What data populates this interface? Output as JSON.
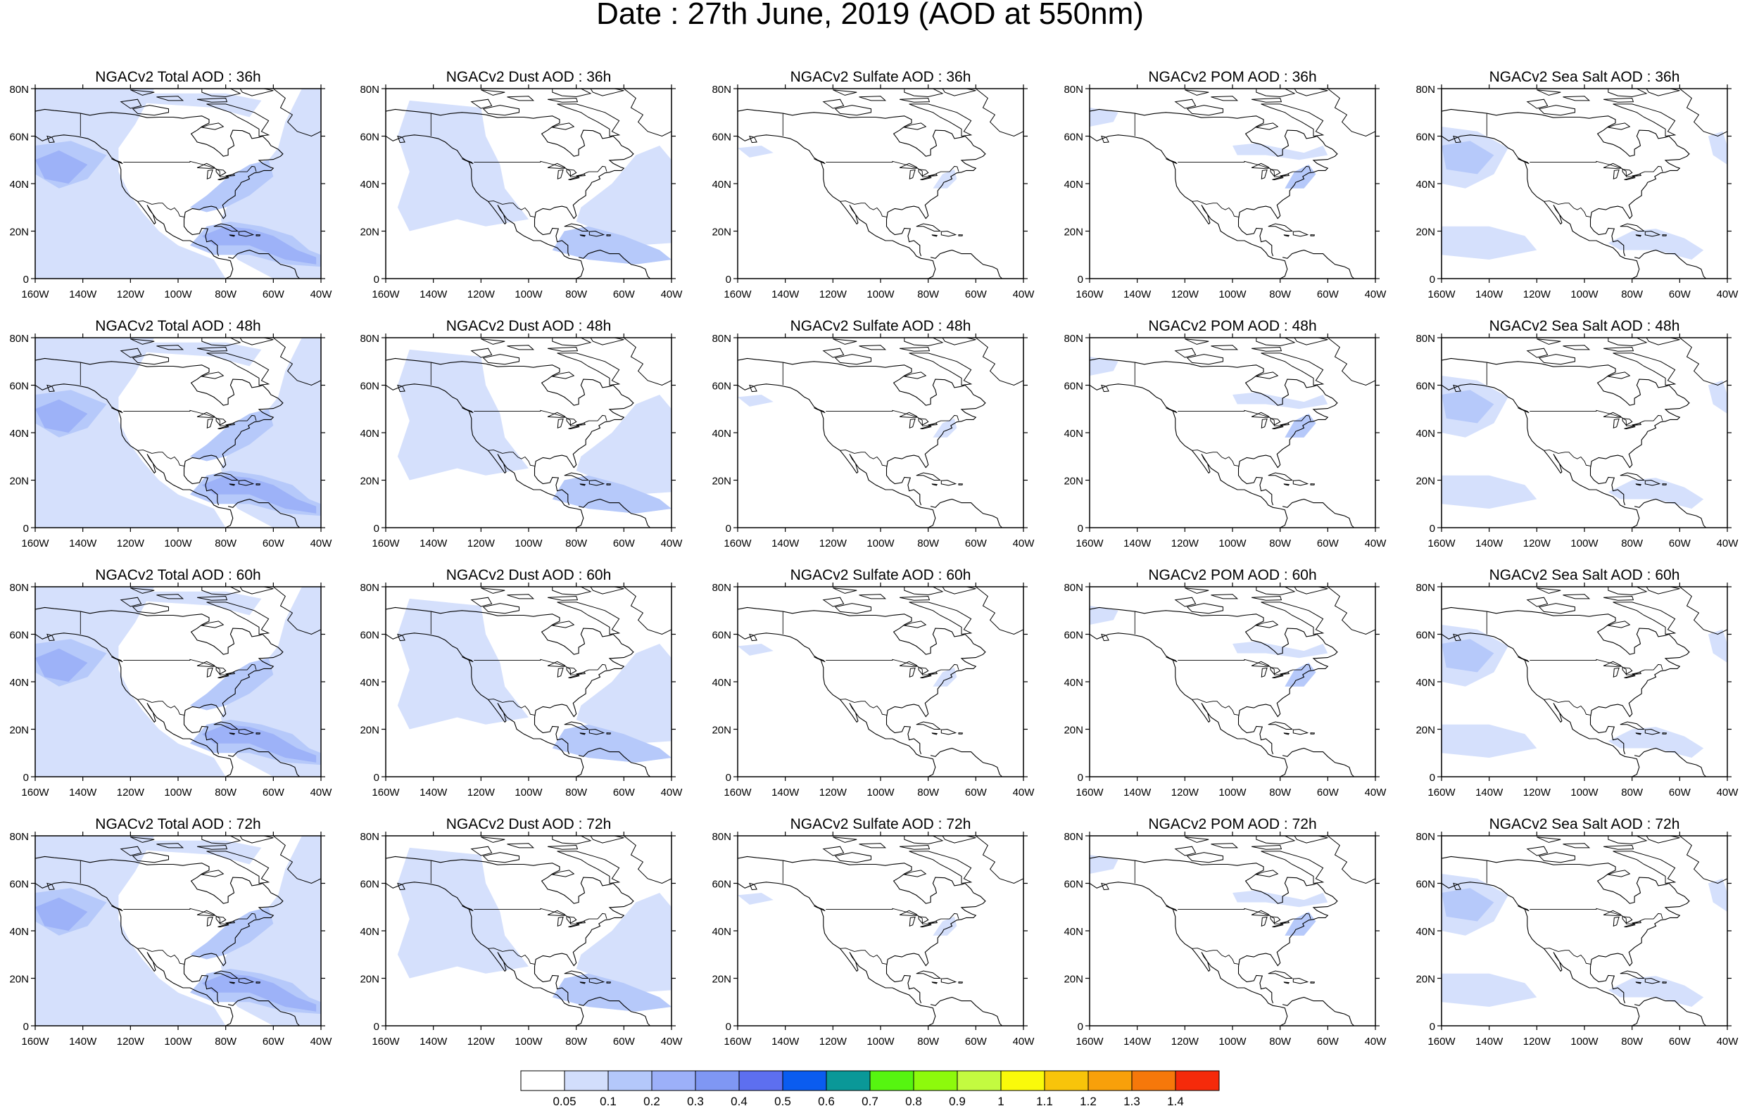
{
  "main_title": "Date : 27th June, 2019 (AOD at 550nm)",
  "lat_ticks": [
    "0",
    "20N",
    "40N",
    "60N",
    "80N"
  ],
  "lon_ticks": [
    "160W",
    "140W",
    "120W",
    "100W",
    "80W",
    "60W",
    "40W"
  ],
  "panels": [
    [
      "NGACv2 Total AOD : 36h",
      "NGACv2 Dust AOD : 36h",
      "NGACv2 Sulfate AOD : 36h",
      "NGACv2 POM AOD : 36h",
      "NGACv2 Sea Salt AOD : 36h"
    ],
    [
      "NGACv2 Total AOD : 48h",
      "NGACv2 Dust AOD : 48h",
      "NGACv2 Sulfate AOD : 48h",
      "NGACv2 POM AOD : 48h",
      "NGACv2 Sea Salt AOD : 48h"
    ],
    [
      "NGACv2 Total AOD : 60h",
      "NGACv2 Dust AOD : 60h",
      "NGACv2 Sulfate AOD : 60h",
      "NGACv2 POM AOD : 60h",
      "NGACv2 Sea Salt AOD : 60h"
    ],
    [
      "NGACv2 Total AOD : 72h",
      "NGACv2 Dust AOD : 72h",
      "NGACv2 Sulfate AOD : 72h",
      "NGACv2 POM AOD : 72h",
      "NGACv2 Sea Salt  AOD : 72h"
    ]
  ],
  "colorbar": {
    "labels": [
      "0.05",
      "0.1",
      "0.2",
      "0.3",
      "0.4",
      "0.5",
      "0.6",
      "0.7",
      "0.8",
      "0.9",
      "1",
      "1.1",
      "1.2",
      "1.3",
      "1.4"
    ],
    "colors": [
      "#ffffff",
      "#d2defc",
      "#b4c8fb",
      "#9cb0f9",
      "#7f97f4",
      "#5d6ff0",
      "#0a5cf0",
      "#0a9898",
      "#56f510",
      "#8dfa0c",
      "#c3fb40",
      "#fafa0a",
      "#f8c40a",
      "#f8a00a",
      "#f6780a",
      "#f52a0a"
    ]
  }
}
